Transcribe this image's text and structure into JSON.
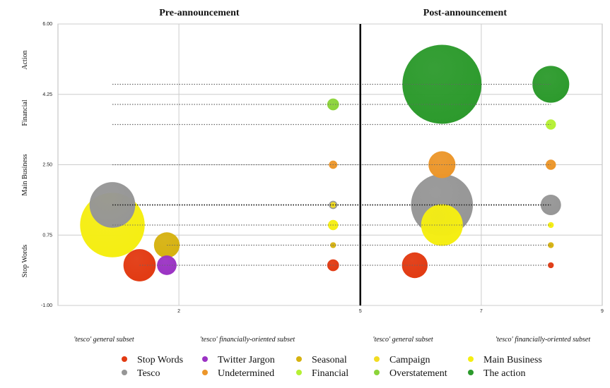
{
  "chart_data": {
    "type": "scatter",
    "subtype": "bubble",
    "panels": [
      "Pre-announcement",
      "Post-announcement"
    ],
    "xlim": [
      0,
      9
    ],
    "ylim": [
      -1.0,
      6.0
    ],
    "x_ticks": [
      2,
      5,
      7,
      9
    ],
    "y_ticks": [
      "-1.00",
      "0.75",
      "2.50",
      "4.25",
      "6.00"
    ],
    "y_tick_values": [
      -1.0,
      0.75,
      2.5,
      4.25,
      6.0
    ],
    "y_categories": [
      "Action",
      "Financial",
      "Main Business",
      "Stop Words"
    ],
    "x_subsets": [
      "'tesco' general subset",
      "'tesco' financially-oriented subset",
      "'tesco' general subset",
      "'tesco' financially-oriented subset"
    ],
    "grid": true,
    "legend_position": "bottom",
    "series": [
      {
        "name": "Stop Words",
        "color": "#e23a12",
        "points": [
          {
            "x": 1.35,
            "y": 0.0,
            "size": 3.0
          },
          {
            "x": 4.55,
            "y": 0.0,
            "size": 0.4
          },
          {
            "x": 5.9,
            "y": 0.0,
            "size": 1.9
          },
          {
            "x": 8.15,
            "y": 0.0,
            "size": 0.1
          }
        ]
      },
      {
        "name": "Twitter Jargon",
        "color": "#9b33c4",
        "points": [
          {
            "x": 1.8,
            "y": 0.0,
            "size": 1.1
          }
        ]
      },
      {
        "name": "Seasonal",
        "color": "#d6b210",
        "points": [
          {
            "x": 1.8,
            "y": 0.5,
            "size": 1.9
          },
          {
            "x": 4.55,
            "y": 0.5,
            "size": 0.1
          },
          {
            "x": 8.15,
            "y": 0.5,
            "size": 0.1
          }
        ]
      },
      {
        "name": "Campaign",
        "color": "#f2dc22",
        "points": [
          {
            "x": 4.55,
            "y": 1.5,
            "size": 0.1
          }
        ]
      },
      {
        "name": "Main Business",
        "color": "#f5ee12",
        "points": [
          {
            "x": 0.9,
            "y": 1.0,
            "size": 12.0
          },
          {
            "x": 4.55,
            "y": 1.0,
            "size": 0.3
          },
          {
            "x": 6.35,
            "y": 1.0,
            "size": 5.0
          },
          {
            "x": 8.15,
            "y": 1.0,
            "size": 0.1
          }
        ]
      },
      {
        "name": "Tesco",
        "color": "#969696",
        "points": [
          {
            "x": 0.9,
            "y": 1.5,
            "size": 6.0
          },
          {
            "x": 4.55,
            "y": 1.5,
            "size": 0.2
          },
          {
            "x": 6.35,
            "y": 1.5,
            "size": 11.0
          },
          {
            "x": 8.15,
            "y": 1.5,
            "size": 1.2
          }
        ]
      },
      {
        "name": "Undetermined",
        "color": "#ec962a",
        "points": [
          {
            "x": 4.55,
            "y": 2.5,
            "size": 0.2
          },
          {
            "x": 6.35,
            "y": 2.5,
            "size": 2.1
          },
          {
            "x": 8.15,
            "y": 2.5,
            "size": 0.3
          }
        ]
      },
      {
        "name": "Financial",
        "color": "#b5f034",
        "points": [
          {
            "x": 8.15,
            "y": 3.5,
            "size": 0.3
          }
        ]
      },
      {
        "name": "Overstatement",
        "color": "#8cd43a",
        "points": [
          {
            "x": 4.55,
            "y": 4.0,
            "size": 0.4
          }
        ]
      },
      {
        "name": "The action",
        "color": "#2c9a2c",
        "points": [
          {
            "x": 6.35,
            "y": 4.5,
            "size": 18.0
          },
          {
            "x": 8.15,
            "y": 4.5,
            "size": 3.9
          }
        ]
      }
    ],
    "dotted_lines": [
      {
        "y": 4.5,
        "x0": 0.9,
        "x1": 8.15
      },
      {
        "y": 4.0,
        "x0": 0.9,
        "x1": 8.15
      },
      {
        "y": 3.5,
        "x0": 0.9,
        "x1": 8.15
      },
      {
        "y": 2.5,
        "x0": 0.9,
        "x1": 8.15
      },
      {
        "y": 1.5,
        "x0": 0.9,
        "x1": 8.15
      },
      {
        "y": 1.0,
        "x0": 0.9,
        "x1": 8.15
      },
      {
        "y": 0.5,
        "x0": 1.8,
        "x1": 8.15
      },
      {
        "y": 0.0,
        "x0": 1.35,
        "x1": 8.15
      }
    ],
    "divider_x": 5
  },
  "legend": [
    {
      "label": "Stop Words",
      "color": "#e23a12"
    },
    {
      "label": "Twitter Jargon",
      "color": "#9b33c4"
    },
    {
      "label": "Seasonal",
      "color": "#d6b210"
    },
    {
      "label": "Campaign",
      "color": "#f2dc22"
    },
    {
      "label": "Main Business",
      "color": "#f5ee12"
    },
    {
      "label": "Tesco",
      "color": "#969696"
    },
    {
      "label": "Undetermined",
      "color": "#ec962a"
    },
    {
      "label": "Financial",
      "color": "#b5f034"
    },
    {
      "label": "Overstatement",
      "color": "#8cd43a"
    },
    {
      "label": "The action",
      "color": "#2c9a2c"
    }
  ]
}
